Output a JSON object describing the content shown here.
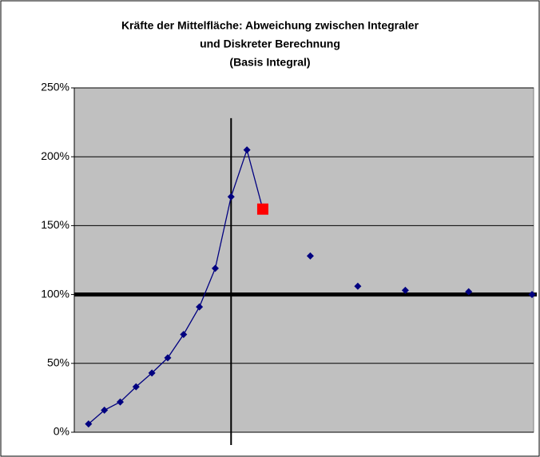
{
  "chart_data": {
    "type": "scatter",
    "title": [
      "Kräfte der Mittelfläche: Abweichung zwischen Integraler",
      "und Diskreter Berechnung",
      "(Basis Integral)"
    ],
    "xlim": [
      -0.9,
      28.1
    ],
    "ylim": [
      0,
      250
    ],
    "yticks": [
      {
        "value": 0,
        "label": "0%"
      },
      {
        "value": 50,
        "label": "50%"
      },
      {
        "value": 100,
        "label": "100%"
      },
      {
        "value": 150,
        "label": "150%"
      },
      {
        "value": 200,
        "label": "200%"
      },
      {
        "value": 250,
        "label": "250%"
      }
    ],
    "grid": true,
    "series": [
      {
        "color": "#000080",
        "connected": true,
        "x": [
          0,
          1,
          2,
          3,
          4,
          5,
          6,
          7,
          8,
          9,
          10,
          11
        ],
        "values": [
          6,
          16,
          22,
          33,
          43,
          54,
          71,
          91,
          119,
          171,
          205,
          162
        ],
        "highlight": {
          "index": 11,
          "color": "#ff0000"
        }
      },
      {
        "color": "#000080",
        "connected": false,
        "x": [
          14,
          17,
          20,
          24,
          28
        ],
        "values": [
          128,
          106,
          103,
          102,
          100
        ]
      }
    ],
    "hline": {
      "y": 100,
      "color": "#000000"
    },
    "vline": {
      "x": 9,
      "top": 228,
      "color": "#000000"
    }
  }
}
